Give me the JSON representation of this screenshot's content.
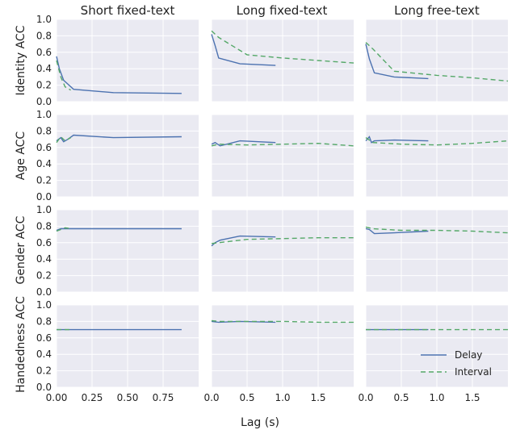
{
  "chart_data": {
    "type": "line",
    "columns": [
      "Short fixed-text",
      "Long fixed-text",
      "Long free-text"
    ],
    "rows": [
      "Identity ACC",
      "Age ACC",
      "Gender ACC",
      "Handedness ACC"
    ],
    "xlabel": "Lag (s)",
    "ylim": [
      0,
      1
    ],
    "yticks": [
      "0.0",
      "0.2",
      "0.4",
      "0.6",
      "0.8",
      "1.0"
    ],
    "x_axes": [
      {
        "xlim": [
          0,
          1.0
        ],
        "ticks": [
          0,
          0.25,
          0.5,
          0.75
        ],
        "tick_labels": [
          "0.00",
          "0.25",
          "0.50",
          "0.75"
        ]
      },
      {
        "xlim": [
          0,
          2.0
        ],
        "ticks": [
          0,
          0.5,
          1.0,
          1.5
        ],
        "tick_labels": [
          "0.0",
          "0.5",
          "1.0",
          "1.5"
        ]
      },
      {
        "xlim": [
          0,
          2.0
        ],
        "ticks": [
          0,
          0.5,
          1.0,
          1.5
        ],
        "tick_labels": [
          "0.0",
          "0.5",
          "1.0",
          "1.5"
        ]
      }
    ],
    "legend": {
      "entries": [
        "Delay",
        "Interval"
      ],
      "location": "lower-right of bottom-right panel"
    },
    "colors": {
      "Delay": "#4c72b0",
      "Interval": "#55a868"
    },
    "panels": [
      {
        "row": 0,
        "col": 0,
        "series": [
          {
            "name": "Delay",
            "x": [
              0,
              0.02,
              0.05,
              0.12,
              0.4,
              0.88
            ],
            "y": [
              0.55,
              0.4,
              0.26,
              0.15,
              0.11,
              0.1
            ]
          },
          {
            "name": "Interval",
            "x": [
              0,
              0.03,
              0.06,
              0.1
            ],
            "y": [
              0.5,
              0.3,
              0.18,
              0.14
            ]
          }
        ]
      },
      {
        "row": 0,
        "col": 1,
        "series": [
          {
            "name": "Delay",
            "x": [
              0,
              0.05,
              0.1,
              0.4,
              0.9
            ],
            "y": [
              0.82,
              0.68,
              0.53,
              0.46,
              0.44
            ]
          },
          {
            "name": "Interval",
            "x": [
              0,
              0.1,
              0.5,
              1.0,
              1.5,
              2.0
            ],
            "y": [
              0.86,
              0.78,
              0.57,
              0.53,
              0.5,
              0.47
            ]
          }
        ]
      },
      {
        "row": 0,
        "col": 2,
        "series": [
          {
            "name": "Delay",
            "x": [
              0,
              0.05,
              0.12,
              0.4,
              0.88
            ],
            "y": [
              0.7,
              0.52,
              0.35,
              0.3,
              0.28
            ]
          },
          {
            "name": "Interval",
            "x": [
              0,
              0.1,
              0.4,
              1.0,
              1.5,
              2.0
            ],
            "y": [
              0.72,
              0.64,
              0.37,
              0.32,
              0.29,
              0.25
            ]
          }
        ]
      },
      {
        "row": 1,
        "col": 0,
        "series": [
          {
            "name": "Delay",
            "x": [
              0,
              0.03,
              0.05,
              0.08,
              0.12,
              0.4,
              0.88
            ],
            "y": [
              0.68,
              0.72,
              0.67,
              0.7,
              0.75,
              0.72,
              0.73
            ]
          },
          {
            "name": "Interval",
            "x": [
              0,
              0.03,
              0.06,
              0.1
            ],
            "y": [
              0.66,
              0.73,
              0.68,
              0.72
            ]
          }
        ]
      },
      {
        "row": 1,
        "col": 1,
        "series": [
          {
            "name": "Delay",
            "x": [
              0,
              0.05,
              0.12,
              0.4,
              0.9
            ],
            "y": [
              0.64,
              0.66,
              0.62,
              0.68,
              0.66
            ]
          },
          {
            "name": "Interval",
            "x": [
              0,
              0.1,
              0.5,
              1.0,
              1.5,
              2.0
            ],
            "y": [
              0.62,
              0.64,
              0.63,
              0.64,
              0.65,
              0.62
            ]
          }
        ]
      },
      {
        "row": 1,
        "col": 2,
        "series": [
          {
            "name": "Delay",
            "x": [
              0,
              0.05,
              0.08,
              0.12,
              0.4,
              0.88
            ],
            "y": [
              0.68,
              0.73,
              0.66,
              0.68,
              0.69,
              0.68
            ]
          },
          {
            "name": "Interval",
            "x": [
              0,
              0.1,
              0.5,
              1.0,
              1.5,
              2.0
            ],
            "y": [
              0.72,
              0.66,
              0.64,
              0.63,
              0.65,
              0.68
            ]
          }
        ]
      },
      {
        "row": 2,
        "col": 0,
        "series": [
          {
            "name": "Delay",
            "x": [
              0,
              0.03,
              0.12,
              0.4,
              0.88
            ],
            "y": [
              0.75,
              0.77,
              0.77,
              0.77,
              0.77
            ]
          },
          {
            "name": "Interval",
            "x": [
              0,
              0.03,
              0.06,
              0.1
            ],
            "y": [
              0.74,
              0.76,
              0.78,
              0.77
            ]
          }
        ]
      },
      {
        "row": 2,
        "col": 1,
        "series": [
          {
            "name": "Delay",
            "x": [
              0,
              0.05,
              0.12,
              0.4,
              0.9
            ],
            "y": [
              0.56,
              0.6,
              0.63,
              0.68,
              0.67
            ]
          },
          {
            "name": "Interval",
            "x": [
              0,
              0.1,
              0.5,
              1.0,
              1.5,
              2.0
            ],
            "y": [
              0.59,
              0.6,
              0.64,
              0.65,
              0.66,
              0.66
            ]
          }
        ]
      },
      {
        "row": 2,
        "col": 2,
        "series": [
          {
            "name": "Delay",
            "x": [
              0,
              0.05,
              0.12,
              0.4,
              0.88
            ],
            "y": [
              0.77,
              0.76,
              0.71,
              0.72,
              0.74
            ]
          },
          {
            "name": "Interval",
            "x": [
              0,
              0.1,
              0.5,
              1.0,
              1.5,
              2.0
            ],
            "y": [
              0.79,
              0.77,
              0.75,
              0.75,
              0.74,
              0.72
            ]
          }
        ]
      },
      {
        "row": 3,
        "col": 0,
        "series": [
          {
            "name": "Delay",
            "x": [
              0,
              0.12,
              0.4,
              0.88
            ],
            "y": [
              0.7,
              0.7,
              0.7,
              0.7
            ]
          },
          {
            "name": "Interval",
            "x": [
              0,
              0.03,
              0.06,
              0.1
            ],
            "y": [
              0.7,
              0.7,
              0.7,
              0.7
            ]
          }
        ]
      },
      {
        "row": 3,
        "col": 1,
        "series": [
          {
            "name": "Delay",
            "x": [
              0,
              0.1,
              0.4,
              0.9
            ],
            "y": [
              0.8,
              0.79,
              0.8,
              0.79
            ]
          },
          {
            "name": "Interval",
            "x": [
              0,
              0.1,
              0.5,
              1.0,
              1.5,
              2.0
            ],
            "y": [
              0.81,
              0.8,
              0.8,
              0.8,
              0.79,
              0.79
            ]
          }
        ]
      },
      {
        "row": 3,
        "col": 2,
        "series": [
          {
            "name": "Delay",
            "x": [
              0,
              0.1,
              0.4,
              0.88
            ],
            "y": [
              0.7,
              0.7,
              0.7,
              0.7
            ]
          },
          {
            "name": "Interval",
            "x": [
              0,
              0.5,
              1.0,
              1.5,
              2.0
            ],
            "y": [
              0.7,
              0.7,
              0.7,
              0.7,
              0.7
            ]
          }
        ]
      }
    ]
  }
}
